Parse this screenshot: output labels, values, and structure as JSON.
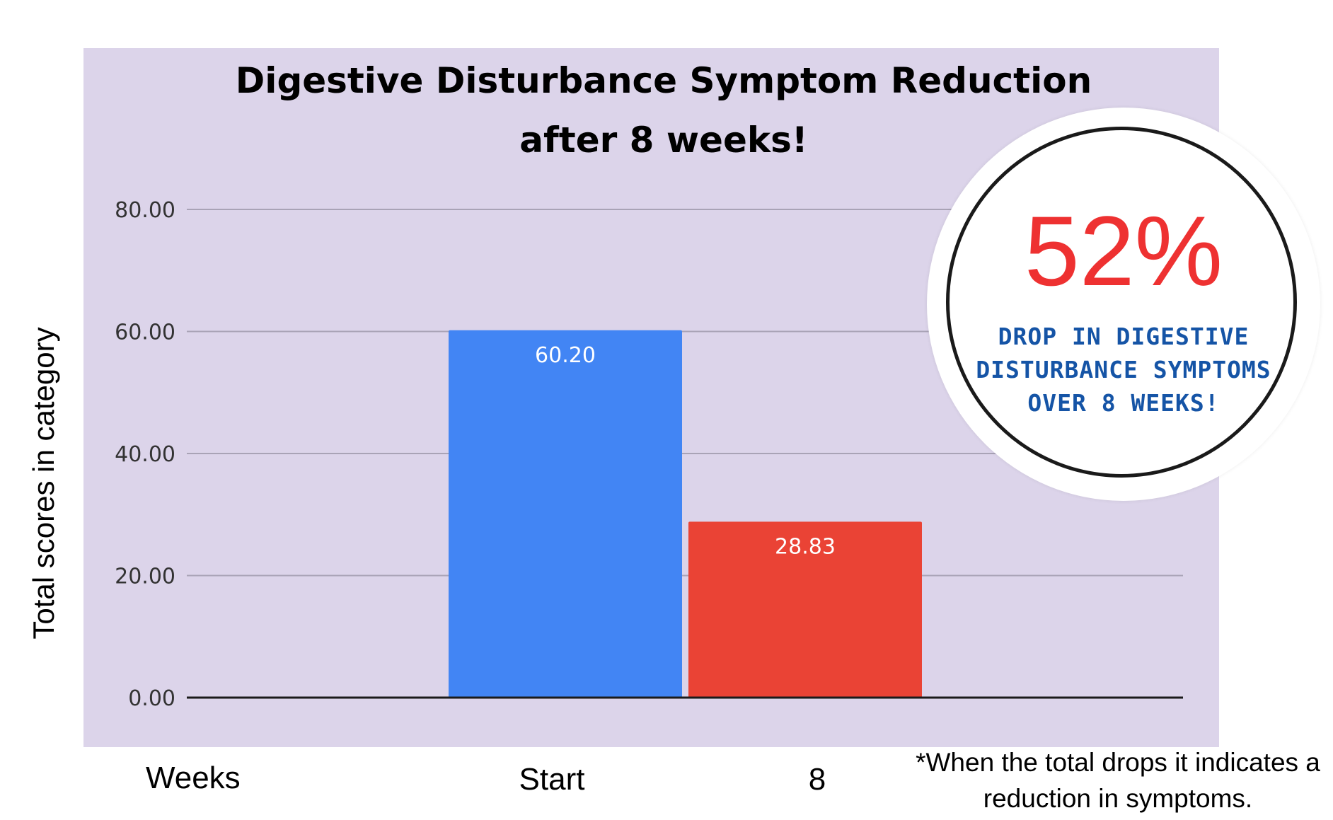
{
  "chart_data": {
    "type": "bar",
    "title": "Digestive Disturbance Symptom Reduction\nafter 8 weeks!",
    "xlabel": "Weeks",
    "ylabel": "Total scores in category",
    "categories": [
      "Start",
      "8"
    ],
    "values": [
      60.2,
      28.83
    ],
    "data_labels": [
      "60.20",
      "28.83"
    ],
    "bar_colors": [
      "#4285f4",
      "#ea4335"
    ],
    "ylim": [
      0,
      80
    ],
    "yticks": [
      0,
      20,
      40,
      60,
      80
    ],
    "ytick_labels": [
      "0.00",
      "20.00",
      "40.00",
      "60.00",
      "80.00"
    ],
    "grid": true,
    "background_color": "#dcd4ea"
  },
  "badge": {
    "percent": "52%",
    "text": "DROP IN DIGESTIVE\nDISTURBANCE SYMPTOMS\nOVER 8 WEEKS!",
    "percent_color": "#ee3131",
    "text_color": "#1554a6"
  },
  "footnote": "*When the total drops it indicates a reduction in symptoms."
}
